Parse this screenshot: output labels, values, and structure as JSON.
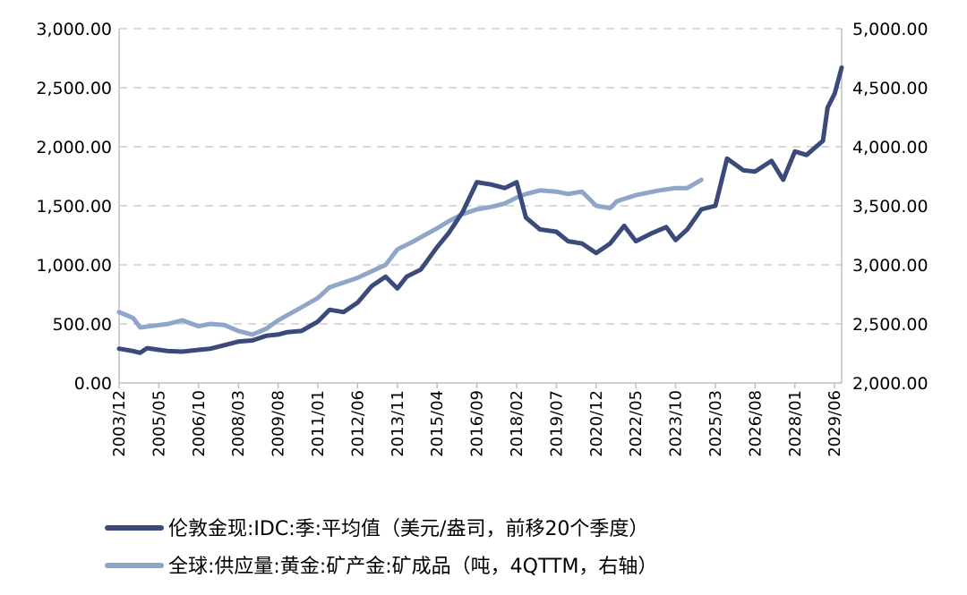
{
  "chart_data": {
    "type": "line",
    "dual_axis": true,
    "grid": "horizontal dashed",
    "legend_position": "bottom",
    "x_tick_labels": [
      "2003/12",
      "2005/05",
      "2006/10",
      "2008/03",
      "2009/08",
      "2011/01",
      "2012/06",
      "2013/11",
      "2015/04",
      "2016/09",
      "2018/02",
      "2019/07",
      "2020/12",
      "2022/05",
      "2023/10",
      "2025/03",
      "2026/08",
      "2028/01",
      "2029/06"
    ],
    "y_left": {
      "range": [
        0,
        3000
      ],
      "tick_labels": [
        "0.00",
        "500.00",
        "1,000.00",
        "1,500.00",
        "2,000.00",
        "2,500.00",
        "3,000.00"
      ]
    },
    "y_right": {
      "range": [
        2000,
        5000
      ],
      "tick_labels": [
        "2,000.00",
        "2,500.00",
        "3,000.00",
        "3,500.00",
        "4,000.00",
        "4,500.00",
        "5,000.00"
      ]
    },
    "series": [
      {
        "name": "伦敦金现:IDC:季:平均值（美元/盎司，前移20个季度）",
        "axis": "left",
        "color": "#3b4a7a",
        "points": [
          [
            "2003/12",
            290
          ],
          [
            "2004/06",
            270
          ],
          [
            "2004/09",
            255
          ],
          [
            "2004/12",
            295
          ],
          [
            "2005/05",
            280
          ],
          [
            "2005/09",
            270
          ],
          [
            "2006/03",
            265
          ],
          [
            "2006/10",
            280
          ],
          [
            "2007/03",
            290
          ],
          [
            "2007/09",
            320
          ],
          [
            "2008/03",
            350
          ],
          [
            "2008/09",
            360
          ],
          [
            "2009/03",
            400
          ],
          [
            "2009/08",
            410
          ],
          [
            "2009/12",
            430
          ],
          [
            "2010/06",
            440
          ],
          [
            "2011/01",
            520
          ],
          [
            "2011/06",
            620
          ],
          [
            "2011/12",
            600
          ],
          [
            "2012/06",
            680
          ],
          [
            "2012/12",
            820
          ],
          [
            "2013/06",
            900
          ],
          [
            "2013/11",
            800
          ],
          [
            "2014/03",
            900
          ],
          [
            "2014/09",
            960
          ],
          [
            "2015/04",
            1150
          ],
          [
            "2015/09",
            1270
          ],
          [
            "2016/03",
            1450
          ],
          [
            "2016/09",
            1700
          ],
          [
            "2017/03",
            1680
          ],
          [
            "2017/09",
            1650
          ],
          [
            "2018/02",
            1700
          ],
          [
            "2018/06",
            1400
          ],
          [
            "2018/12",
            1300
          ],
          [
            "2019/07",
            1280
          ],
          [
            "2019/12",
            1200
          ],
          [
            "2020/06",
            1180
          ],
          [
            "2020/12",
            1100
          ],
          [
            "2021/06",
            1180
          ],
          [
            "2021/12",
            1330
          ],
          [
            "2022/05",
            1200
          ],
          [
            "2022/12",
            1270
          ],
          [
            "2023/06",
            1320
          ],
          [
            "2023/10",
            1210
          ],
          [
            "2024/03",
            1300
          ],
          [
            "2024/09",
            1470
          ],
          [
            "2025/03",
            1500
          ],
          [
            "2025/08",
            1900
          ],
          [
            "2026/03",
            1800
          ],
          [
            "2026/08",
            1790
          ],
          [
            "2027/03",
            1880
          ],
          [
            "2027/08",
            1720
          ],
          [
            "2028/01",
            1960
          ],
          [
            "2028/06",
            1930
          ],
          [
            "2029/01",
            2050
          ],
          [
            "2029/03",
            2330
          ],
          [
            "2029/06",
            2450
          ],
          [
            "2029/09",
            2670
          ]
        ]
      },
      {
        "name": "全球:供应量:黄金:矿产金:矿成品（吨，4QTTM，右轴）",
        "axis": "right",
        "color": "#8fa6c8",
        "points": [
          [
            "2003/12",
            2600
          ],
          [
            "2004/06",
            2550
          ],
          [
            "2004/09",
            2470
          ],
          [
            "2005/05",
            2490
          ],
          [
            "2005/09",
            2500
          ],
          [
            "2006/03",
            2530
          ],
          [
            "2006/10",
            2480
          ],
          [
            "2007/03",
            2500
          ],
          [
            "2007/09",
            2490
          ],
          [
            "2008/03",
            2440
          ],
          [
            "2008/09",
            2410
          ],
          [
            "2009/03",
            2460
          ],
          [
            "2009/08",
            2530
          ],
          [
            "2010/06",
            2640
          ],
          [
            "2011/01",
            2720
          ],
          [
            "2011/06",
            2810
          ],
          [
            "2012/06",
            2890
          ],
          [
            "2013/06",
            3000
          ],
          [
            "2013/11",
            3130
          ],
          [
            "2014/06",
            3200
          ],
          [
            "2015/04",
            3310
          ],
          [
            "2015/09",
            3370
          ],
          [
            "2016/03",
            3430
          ],
          [
            "2016/09",
            3470
          ],
          [
            "2017/03",
            3490
          ],
          [
            "2017/09",
            3520
          ],
          [
            "2018/02",
            3570
          ],
          [
            "2018/06",
            3600
          ],
          [
            "2018/12",
            3630
          ],
          [
            "2019/07",
            3620
          ],
          [
            "2019/12",
            3600
          ],
          [
            "2020/06",
            3620
          ],
          [
            "2020/12",
            3500
          ],
          [
            "2021/06",
            3480
          ],
          [
            "2021/09",
            3540
          ],
          [
            "2022/05",
            3590
          ],
          [
            "2023/03",
            3630
          ],
          [
            "2023/10",
            3650
          ],
          [
            "2024/03",
            3650
          ],
          [
            "2024/09",
            3720
          ]
        ]
      }
    ]
  }
}
